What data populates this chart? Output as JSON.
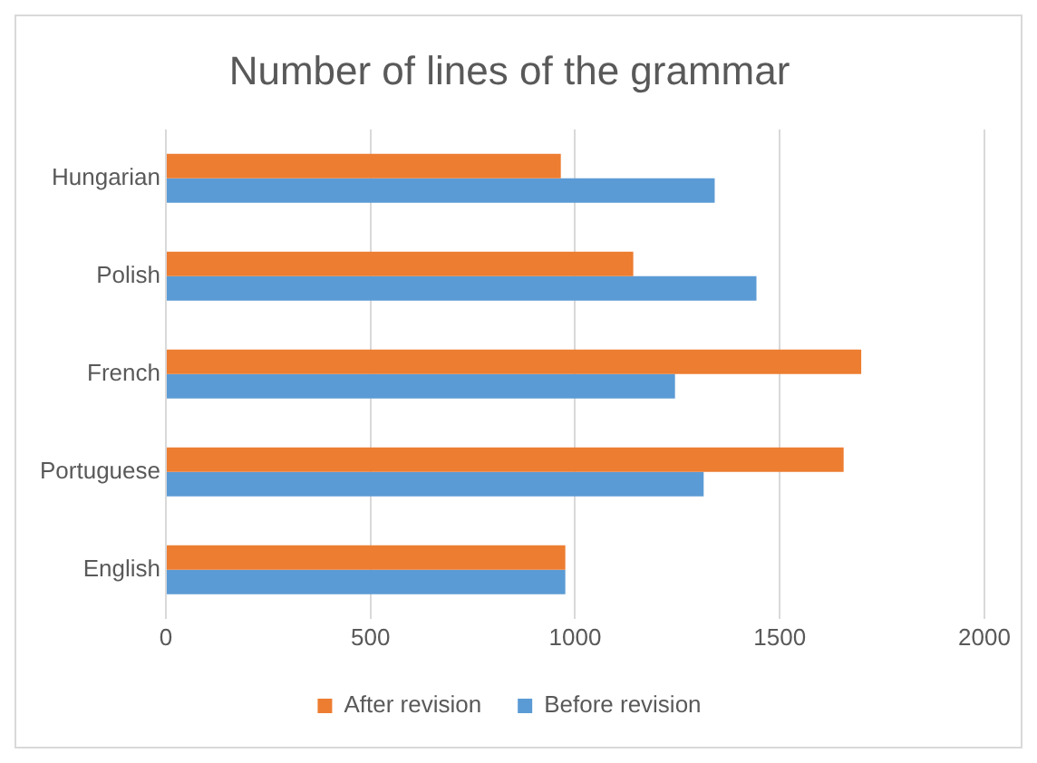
{
  "chart_data": {
    "type": "bar",
    "orientation": "horizontal",
    "title": "Number of lines of the grammar",
    "categories": [
      "Hungarian",
      "Polish",
      "French",
      "Portuguese",
      "English"
    ],
    "series": [
      {
        "name": "After revision",
        "color": "#ed7d31",
        "values": [
          965,
          1142,
          1699,
          1656,
          976
        ]
      },
      {
        "name": "Before revision",
        "color": "#5b9bd5",
        "values": [
          1341,
          1443,
          1244,
          1314,
          976
        ]
      }
    ],
    "xlim": [
      0,
      2000
    ],
    "xticks": [
      0,
      500,
      1000,
      1500,
      2000
    ],
    "grid": "x",
    "legend": "bottom"
  }
}
